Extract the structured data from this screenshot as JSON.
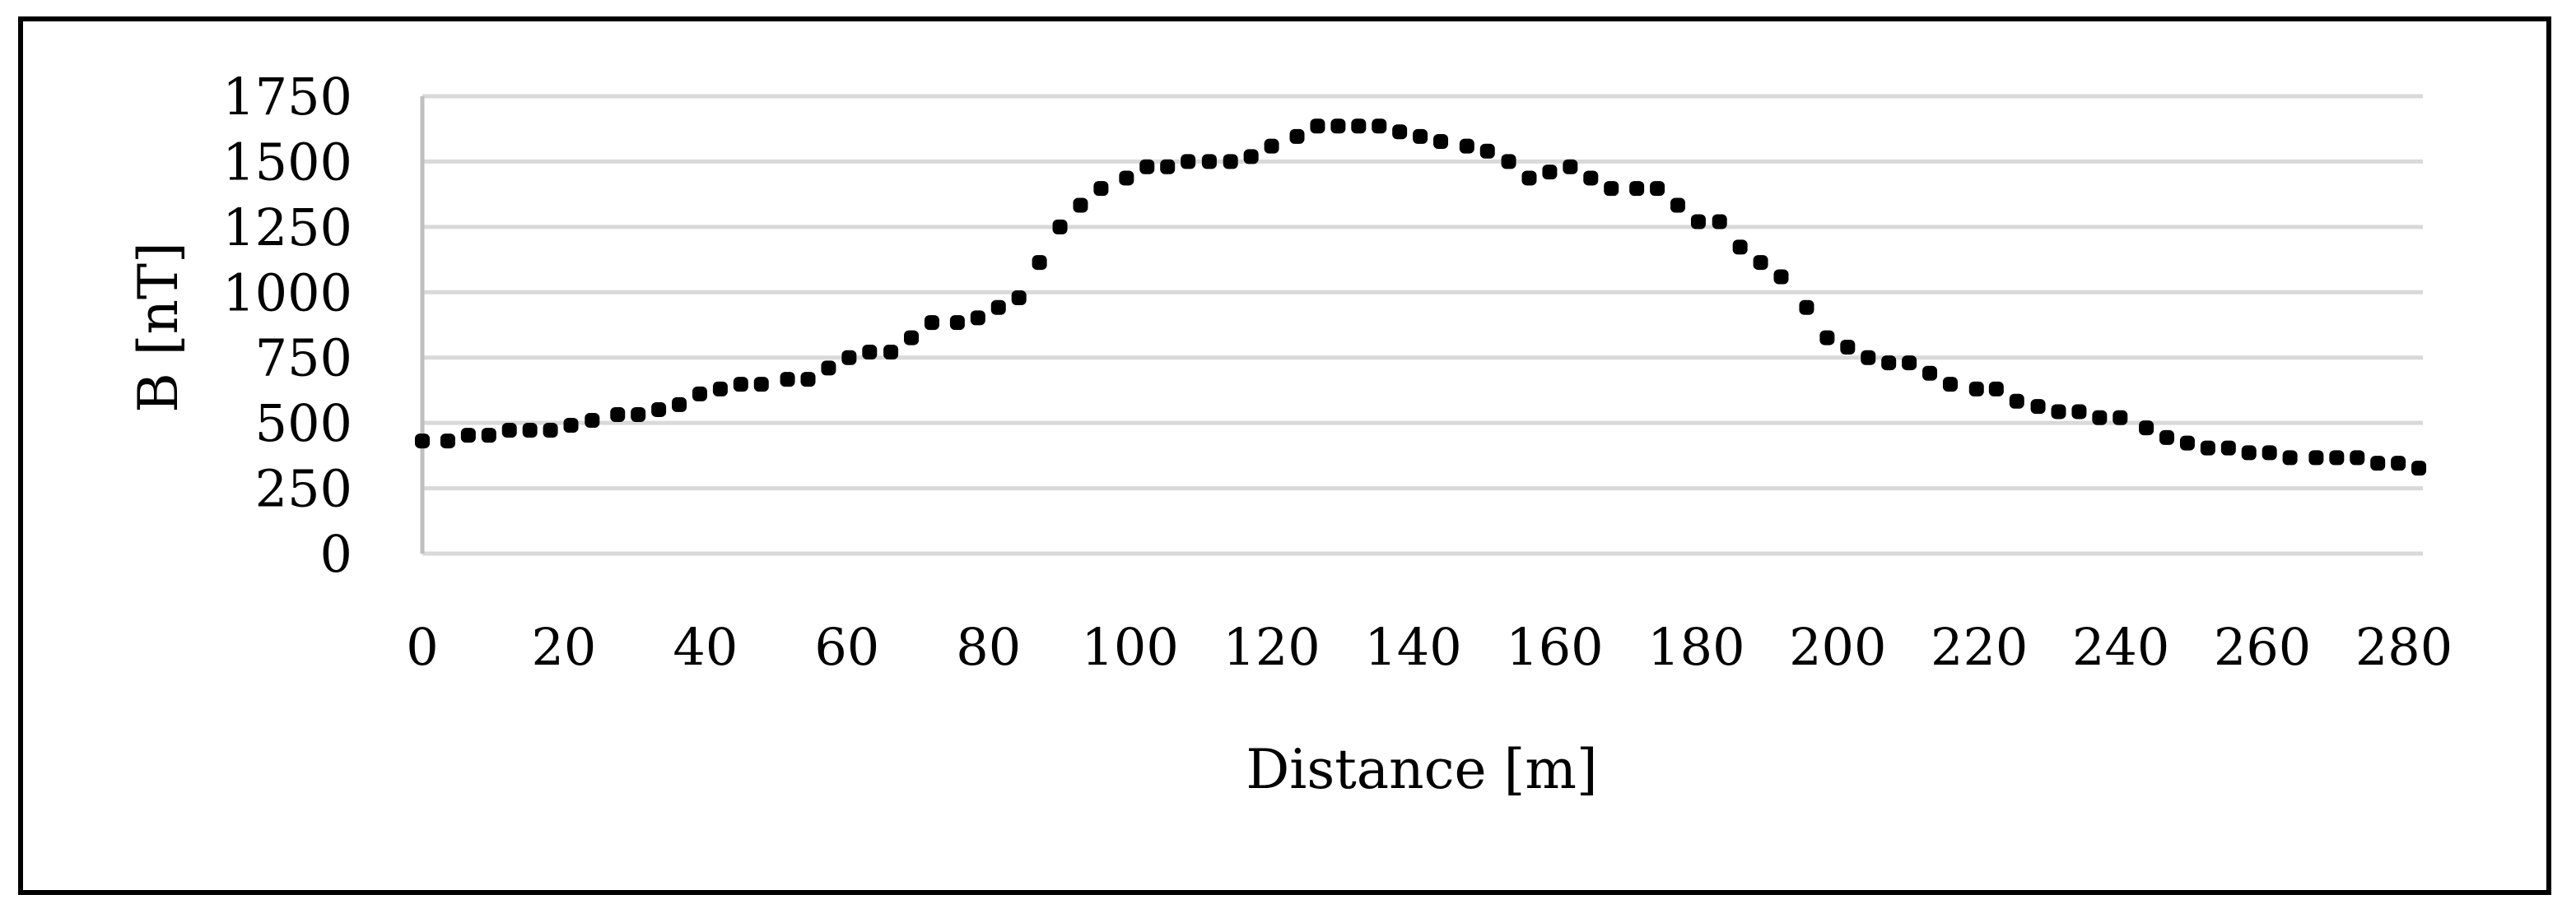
{
  "figure": {
    "frame_color": "#000000",
    "grid_color": "#d9d9d9",
    "axis_color": "#bfbfbf",
    "marker_color": "#000000"
  },
  "chart_data": {
    "type": "scatter",
    "title": "",
    "xlabel": "Distance [m]",
    "ylabel": "B [nT]",
    "xlim": [
      0,
      280
    ],
    "ylim": [
      0,
      1750
    ],
    "x_ticks": [
      0,
      20,
      40,
      60,
      80,
      100,
      120,
      140,
      160,
      180,
      200,
      220,
      240,
      260,
      280
    ],
    "y_ticks": [
      0,
      250,
      500,
      750,
      1000,
      1250,
      1500,
      1750
    ],
    "grid": "horizontal",
    "legend": null,
    "marker": "dot",
    "series": [
      {
        "name": "B",
        "x": [
          0,
          3.6,
          6.5,
          9.4,
          12.3,
          15.2,
          18.1,
          21,
          24,
          27.6,
          30.5,
          33.4,
          36.3,
          39.2,
          42.1,
          45,
          47.9,
          51.6,
          54.5,
          57.4,
          60.3,
          63.2,
          66.2,
          69.1,
          72,
          75.6,
          78.5,
          81.4,
          84.3,
          87.2,
          90.1,
          93,
          95.9,
          99.5,
          102.4,
          105.3,
          108.2,
          111.2,
          114.2,
          117.1,
          120,
          123.6,
          126.5,
          129.4,
          132.3,
          135.2,
          138.1,
          141,
          143.9,
          147.6,
          150.5,
          153.5,
          156.4,
          159.3,
          162.2,
          165.1,
          168,
          171.6,
          174.5,
          177.4,
          180.3,
          183.3,
          186.2,
          189.1,
          192,
          195.6,
          198.5,
          201.4,
          204.3,
          207.2,
          210.1,
          213,
          215.9,
          219.6,
          222.4,
          225.3,
          228.3,
          231.2,
          234.1,
          237,
          239.9,
          243.6,
          246.5,
          249.4,
          252.3,
          255.2,
          258.1,
          261,
          263.9,
          267.6,
          270.5,
          273.4,
          276.3,
          279.2,
          282.1
        ],
        "y": [
          431,
          431,
          453,
          453,
          472,
          472,
          472,
          491,
          510,
          532,
          532,
          551,
          570,
          611,
          630,
          648,
          648,
          667,
          667,
          710,
          750,
          771,
          771,
          826,
          884,
          884,
          902,
          942,
          979,
          1114,
          1250,
          1333,
          1397,
          1437,
          1480,
          1480,
          1500,
          1500,
          1500,
          1519,
          1559,
          1596,
          1636,
          1636,
          1636,
          1636,
          1614,
          1596,
          1577,
          1559,
          1540,
          1500,
          1437,
          1460,
          1480,
          1437,
          1397,
          1397,
          1397,
          1333,
          1270,
          1270,
          1173,
          1114,
          1059,
          942,
          826,
          790,
          750,
          730,
          730,
          690,
          648,
          630,
          630,
          583,
          563,
          543,
          543,
          520,
          520,
          481,
          444,
          423,
          404,
          404,
          386,
          386,
          367,
          367,
          367,
          367,
          346,
          346,
          327
        ]
      }
    ]
  }
}
